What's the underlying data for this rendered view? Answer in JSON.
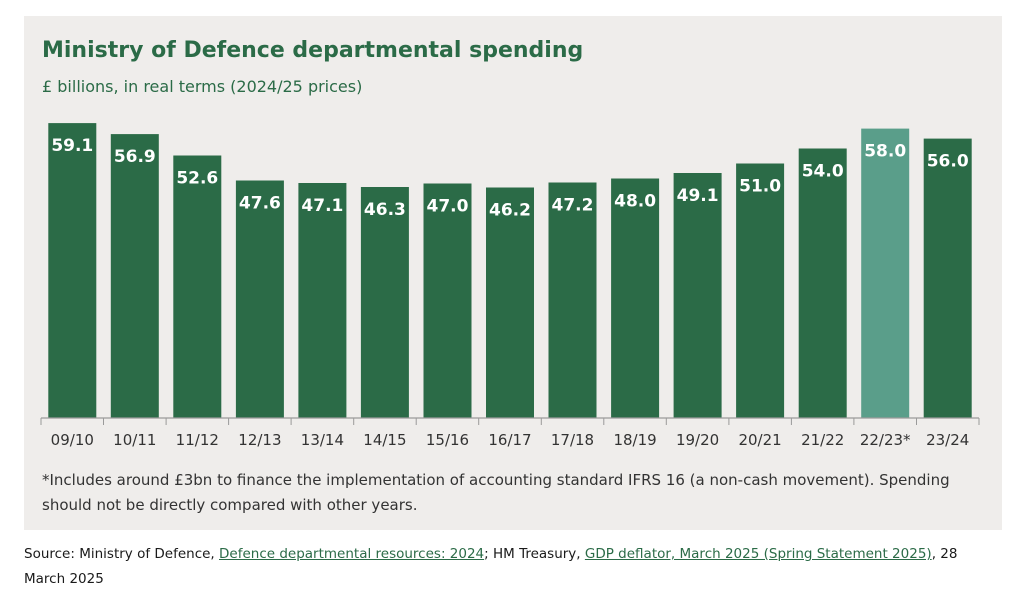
{
  "chart_data": {
    "type": "bar",
    "title": "Ministry of Defence departmental spending",
    "subtitle": "£ billions, in real terms (2024/25 prices)",
    "categories": [
      "09/10",
      "10/11",
      "11/12",
      "12/13",
      "13/14",
      "14/15",
      "15/16",
      "16/17",
      "17/18",
      "18/19",
      "19/20",
      "20/21",
      "21/22",
      "22/23*",
      "23/24"
    ],
    "values": [
      59.1,
      56.9,
      52.6,
      47.6,
      47.1,
      46.3,
      47.0,
      46.2,
      47.2,
      48.0,
      49.1,
      51.0,
      54.0,
      58.0,
      56.0
    ],
    "value_labels": [
      "59.1",
      "56.9",
      "52.6",
      "47.6",
      "47.1",
      "46.3",
      "47.0",
      "46.2",
      "47.2",
      "48.0",
      "49.1",
      "51.0",
      "54.0",
      "58.0",
      "56.0"
    ],
    "highlighted_category": "22/23*",
    "ylim": [
      0,
      60
    ],
    "grid": false,
    "colors": {
      "bar": "#2b6b47",
      "highlight": "#5a9e8a",
      "label": "#ffffff"
    }
  },
  "footnote": "*Includes around £3bn to finance the implementation of accounting standard IFRS 16 (a non-cash movement). Spending should not be directly compared with other years.",
  "source": {
    "prefix": "Source: Ministry of Defence, ",
    "link1": "Defence departmental resources: 2024",
    "middle": ";  HM Treasury, ",
    "link2": "GDP deflator, March 2025 (Spring Statement 2025)",
    "suffix": ", 28 March 2025"
  }
}
